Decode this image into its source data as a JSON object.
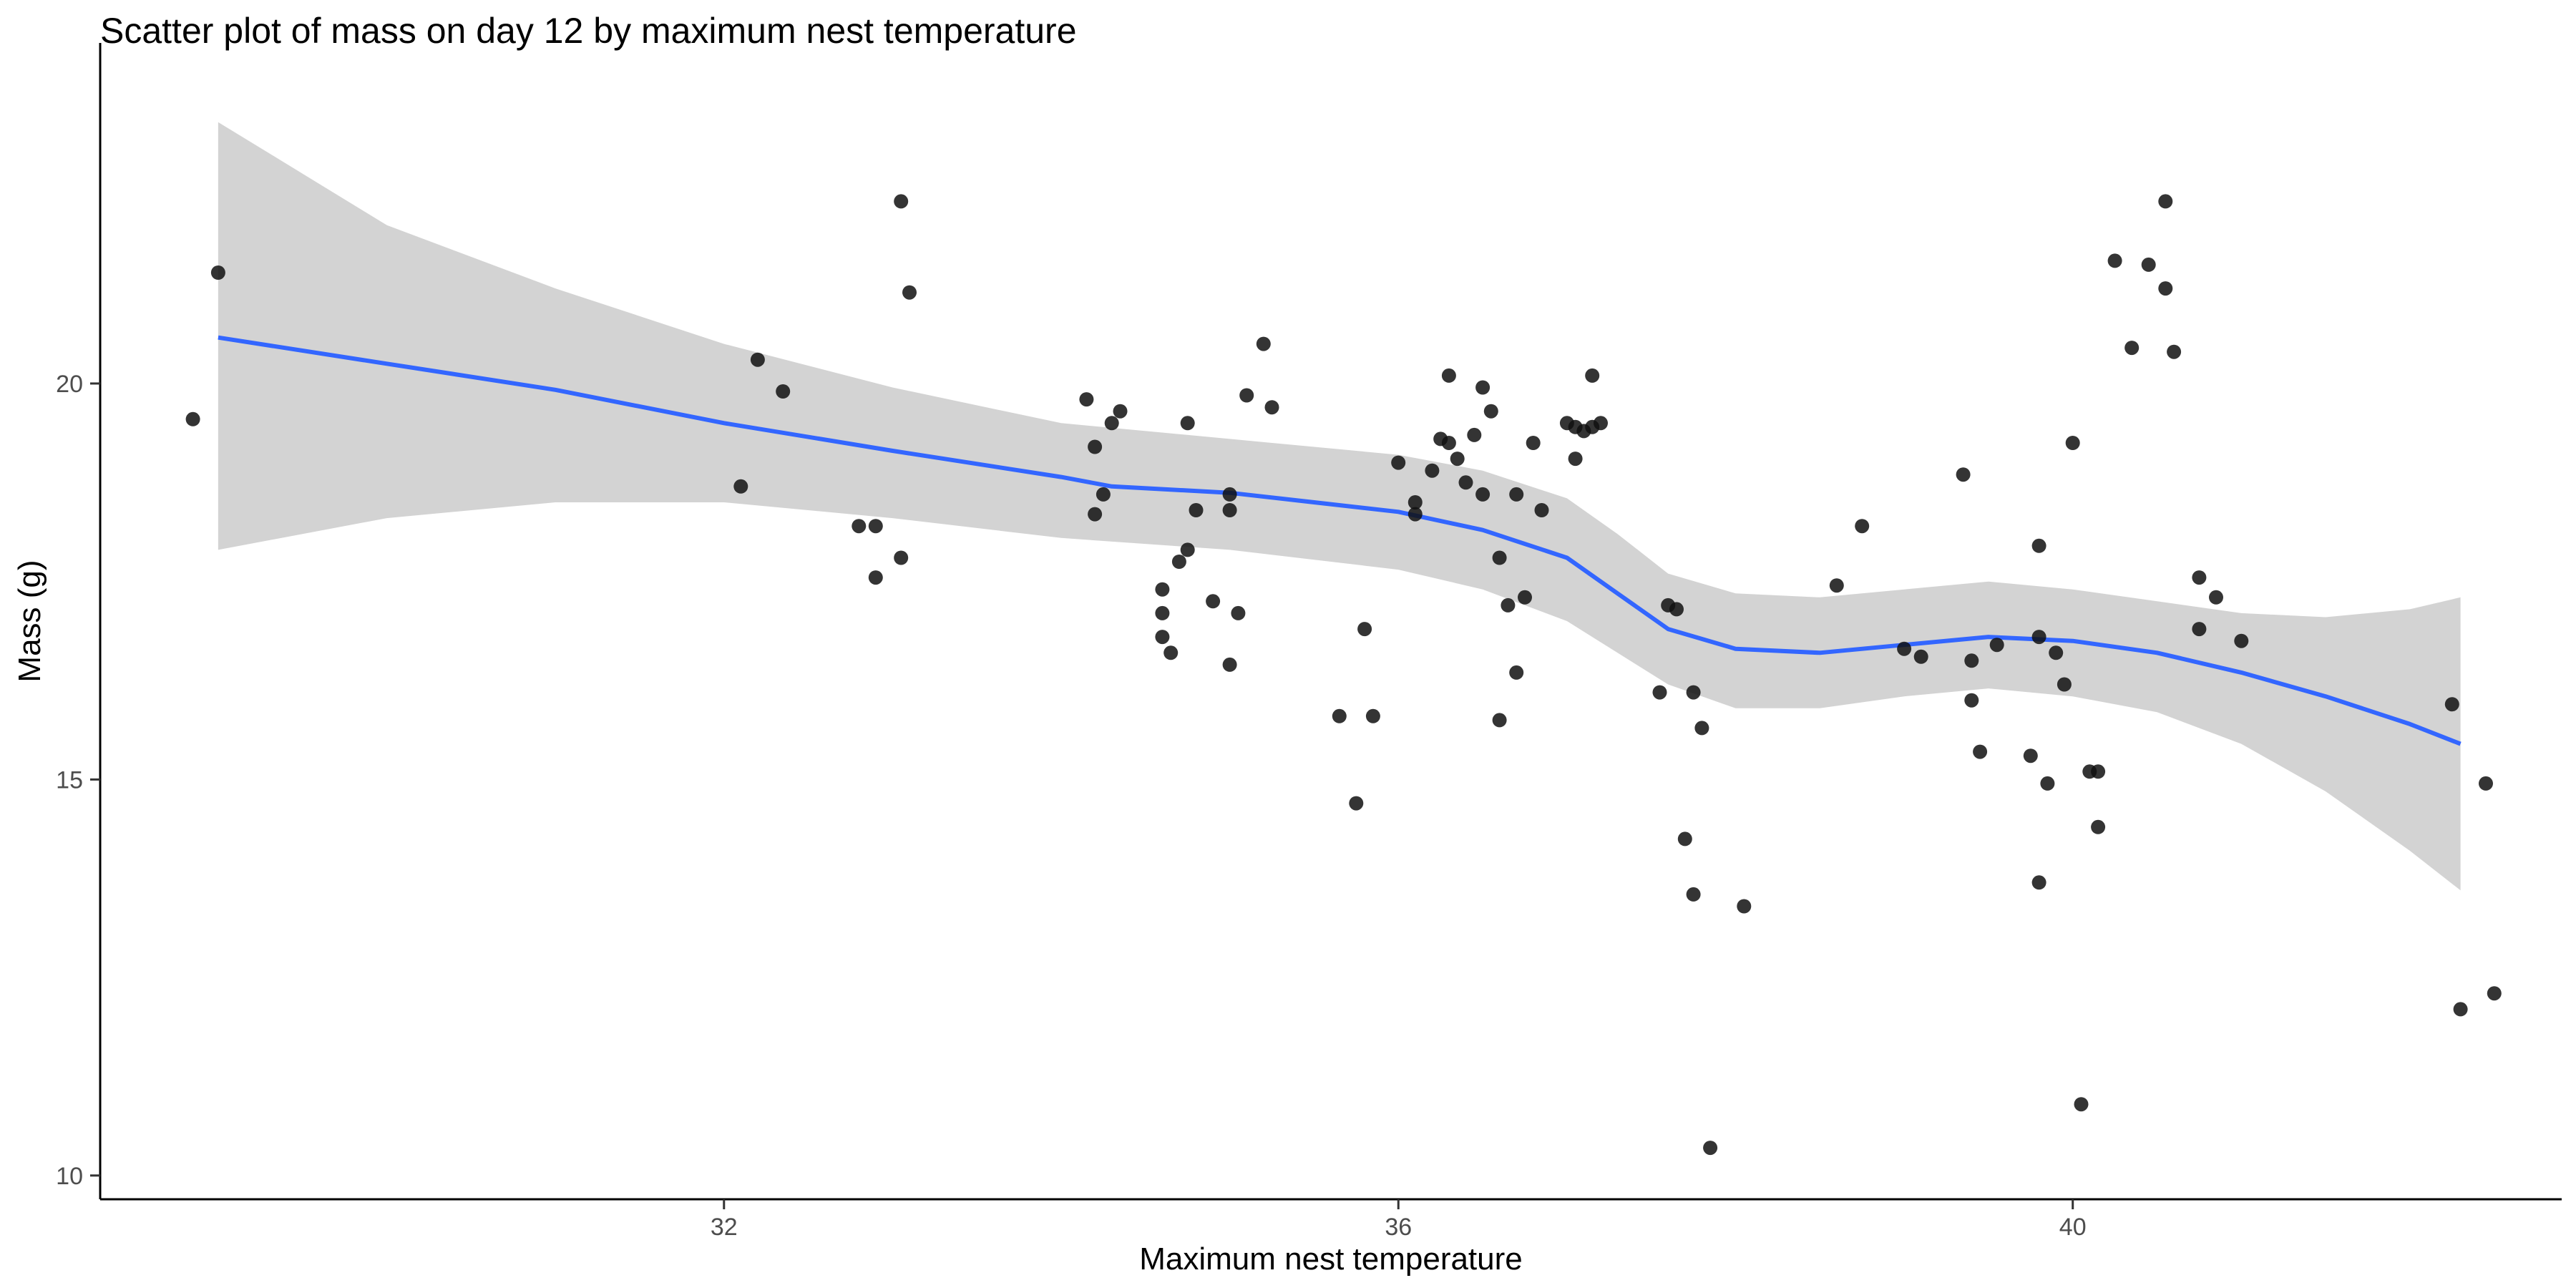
{
  "chart_data": {
    "type": "scatter",
    "title": "Scatter plot of mass on day 12 by maximum nest temperature",
    "xlabel": "Maximum nest temperature",
    "ylabel": "Mass (g)",
    "xlim": [
      28.3,
      42.9
    ],
    "ylim": [
      9.7,
      24.3
    ],
    "x_ticks": [
      32,
      36,
      40
    ],
    "x_tick_labels": [
      "32",
      "36",
      "40"
    ],
    "y_ticks": [
      10,
      15,
      20
    ],
    "y_tick_labels": [
      "10",
      "15",
      "20"
    ],
    "grid": false,
    "legend": "none",
    "colors": {
      "points": "#111111",
      "smooth_line": "#3366ff",
      "confidence_band": "#d3d3d3",
      "axis": "#000000"
    },
    "points": [
      {
        "x": 28.85,
        "y": 19.55
      },
      {
        "x": 29.0,
        "y": 21.4
      },
      {
        "x": 32.1,
        "y": 18.7
      },
      {
        "x": 32.2,
        "y": 20.3
      },
      {
        "x": 32.35,
        "y": 19.9
      },
      {
        "x": 32.8,
        "y": 18.2
      },
      {
        "x": 32.9,
        "y": 17.55
      },
      {
        "x": 32.9,
        "y": 18.2
      },
      {
        "x": 33.05,
        "y": 22.3
      },
      {
        "x": 33.05,
        "y": 17.8
      },
      {
        "x": 33.1,
        "y": 21.15
      },
      {
        "x": 34.15,
        "y": 19.8
      },
      {
        "x": 34.2,
        "y": 19.2
      },
      {
        "x": 34.2,
        "y": 18.35
      },
      {
        "x": 34.25,
        "y": 18.6
      },
      {
        "x": 34.3,
        "y": 19.5
      },
      {
        "x": 34.35,
        "y": 19.65
      },
      {
        "x": 34.6,
        "y": 17.4
      },
      {
        "x": 34.6,
        "y": 17.1
      },
      {
        "x": 34.6,
        "y": 16.8
      },
      {
        "x": 34.65,
        "y": 16.6
      },
      {
        "x": 34.7,
        "y": 17.75
      },
      {
        "x": 34.75,
        "y": 17.9
      },
      {
        "x": 34.75,
        "y": 19.5
      },
      {
        "x": 34.8,
        "y": 18.4
      },
      {
        "x": 34.9,
        "y": 17.25
      },
      {
        "x": 35.0,
        "y": 18.6
      },
      {
        "x": 35.0,
        "y": 18.4
      },
      {
        "x": 35.0,
        "y": 16.45
      },
      {
        "x": 35.05,
        "y": 17.1
      },
      {
        "x": 35.1,
        "y": 19.85
      },
      {
        "x": 35.2,
        "y": 20.5
      },
      {
        "x": 35.25,
        "y": 19.7
      },
      {
        "x": 35.65,
        "y": 15.8
      },
      {
        "x": 35.75,
        "y": 14.7
      },
      {
        "x": 35.8,
        "y": 16.9
      },
      {
        "x": 35.85,
        "y": 15.8
      },
      {
        "x": 36.0,
        "y": 19.0
      },
      {
        "x": 36.1,
        "y": 18.5
      },
      {
        "x": 36.1,
        "y": 18.35
      },
      {
        "x": 36.2,
        "y": 18.9
      },
      {
        "x": 36.25,
        "y": 19.3
      },
      {
        "x": 36.3,
        "y": 20.1
      },
      {
        "x": 36.3,
        "y": 19.25
      },
      {
        "x": 36.35,
        "y": 19.05
      },
      {
        "x": 36.4,
        "y": 18.75
      },
      {
        "x": 36.45,
        "y": 19.35
      },
      {
        "x": 36.5,
        "y": 19.95
      },
      {
        "x": 36.5,
        "y": 18.6
      },
      {
        "x": 36.55,
        "y": 19.65
      },
      {
        "x": 36.6,
        "y": 17.8
      },
      {
        "x": 36.6,
        "y": 15.75
      },
      {
        "x": 36.65,
        "y": 17.2
      },
      {
        "x": 36.7,
        "y": 16.35
      },
      {
        "x": 36.7,
        "y": 18.6
      },
      {
        "x": 36.75,
        "y": 17.3
      },
      {
        "x": 36.8,
        "y": 19.25
      },
      {
        "x": 36.85,
        "y": 18.4
      },
      {
        "x": 37.0,
        "y": 19.5
      },
      {
        "x": 37.05,
        "y": 19.05
      },
      {
        "x": 37.05,
        "y": 19.45
      },
      {
        "x": 37.1,
        "y": 19.4
      },
      {
        "x": 37.15,
        "y": 19.45
      },
      {
        "x": 37.15,
        "y": 20.1
      },
      {
        "x": 37.2,
        "y": 19.5
      },
      {
        "x": 37.55,
        "y": 16.1
      },
      {
        "x": 37.6,
        "y": 17.2
      },
      {
        "x": 37.65,
        "y": 17.15
      },
      {
        "x": 37.7,
        "y": 14.25
      },
      {
        "x": 37.75,
        "y": 13.55
      },
      {
        "x": 37.75,
        "y": 16.1
      },
      {
        "x": 37.8,
        "y": 15.65
      },
      {
        "x": 37.85,
        "y": 10.35
      },
      {
        "x": 38.05,
        "y": 13.4
      },
      {
        "x": 38.6,
        "y": 17.45
      },
      {
        "x": 38.75,
        "y": 18.2
      },
      {
        "x": 39.0,
        "y": 16.65
      },
      {
        "x": 39.1,
        "y": 16.55
      },
      {
        "x": 39.35,
        "y": 18.85
      },
      {
        "x": 39.4,
        "y": 16.5
      },
      {
        "x": 39.4,
        "y": 16.0
      },
      {
        "x": 39.45,
        "y": 15.35
      },
      {
        "x": 39.55,
        "y": 16.7
      },
      {
        "x": 39.75,
        "y": 15.3
      },
      {
        "x": 39.8,
        "y": 13.7
      },
      {
        "x": 39.8,
        "y": 17.95
      },
      {
        "x": 39.8,
        "y": 16.8
      },
      {
        "x": 39.85,
        "y": 14.95
      },
      {
        "x": 39.9,
        "y": 16.6
      },
      {
        "x": 39.95,
        "y": 16.2
      },
      {
        "x": 40.0,
        "y": 19.25
      },
      {
        "x": 40.05,
        "y": 10.9
      },
      {
        "x": 40.1,
        "y": 15.1
      },
      {
        "x": 40.15,
        "y": 15.1
      },
      {
        "x": 40.15,
        "y": 14.4
      },
      {
        "x": 40.25,
        "y": 21.55
      },
      {
        "x": 40.35,
        "y": 20.45
      },
      {
        "x": 40.45,
        "y": 21.5
      },
      {
        "x": 40.55,
        "y": 21.2
      },
      {
        "x": 40.55,
        "y": 22.3
      },
      {
        "x": 40.6,
        "y": 20.4
      },
      {
        "x": 40.75,
        "y": 16.9
      },
      {
        "x": 40.75,
        "y": 17.55
      },
      {
        "x": 40.85,
        "y": 17.3
      },
      {
        "x": 41.0,
        "y": 16.75
      },
      {
        "x": 42.25,
        "y": 15.95
      },
      {
        "x": 42.3,
        "y": 12.1
      },
      {
        "x": 42.45,
        "y": 14.95
      },
      {
        "x": 42.5,
        "y": 12.3
      }
    ],
    "smooth_line": [
      {
        "x": 29.0,
        "y": 20.58
      },
      {
        "x": 30.0,
        "y": 20.25
      },
      {
        "x": 31.0,
        "y": 19.92
      },
      {
        "x": 32.0,
        "y": 19.5
      },
      {
        "x": 33.0,
        "y": 19.15
      },
      {
        "x": 34.0,
        "y": 18.82
      },
      {
        "x": 34.3,
        "y": 18.7
      },
      {
        "x": 35.0,
        "y": 18.62
      },
      {
        "x": 35.5,
        "y": 18.5
      },
      {
        "x": 36.0,
        "y": 18.38
      },
      {
        "x": 36.5,
        "y": 18.15
      },
      {
        "x": 37.0,
        "y": 17.8
      },
      {
        "x": 37.3,
        "y": 17.35
      },
      {
        "x": 37.6,
        "y": 16.9
      },
      {
        "x": 38.0,
        "y": 16.65
      },
      {
        "x": 38.5,
        "y": 16.6
      },
      {
        "x": 39.0,
        "y": 16.7
      },
      {
        "x": 39.5,
        "y": 16.8
      },
      {
        "x": 40.0,
        "y": 16.75
      },
      {
        "x": 40.5,
        "y": 16.6
      },
      {
        "x": 41.0,
        "y": 16.35
      },
      {
        "x": 41.5,
        "y": 16.05
      },
      {
        "x": 42.0,
        "y": 15.7
      },
      {
        "x": 42.3,
        "y": 15.45
      }
    ],
    "band_upper": [
      {
        "x": 29.0,
        "y": 23.3
      },
      {
        "x": 30.0,
        "y": 22.0
      },
      {
        "x": 31.0,
        "y": 21.2
      },
      {
        "x": 32.0,
        "y": 20.5
      },
      {
        "x": 33.0,
        "y": 19.95
      },
      {
        "x": 34.0,
        "y": 19.5
      },
      {
        "x": 35.0,
        "y": 19.3
      },
      {
        "x": 36.0,
        "y": 19.1
      },
      {
        "x": 36.5,
        "y": 18.9
      },
      {
        "x": 37.0,
        "y": 18.55
      },
      {
        "x": 37.3,
        "y": 18.1
      },
      {
        "x": 37.6,
        "y": 17.6
      },
      {
        "x": 38.0,
        "y": 17.35
      },
      {
        "x": 38.5,
        "y": 17.3
      },
      {
        "x": 39.0,
        "y": 17.4
      },
      {
        "x": 39.5,
        "y": 17.5
      },
      {
        "x": 40.0,
        "y": 17.4
      },
      {
        "x": 40.5,
        "y": 17.25
      },
      {
        "x": 41.0,
        "y": 17.1
      },
      {
        "x": 41.5,
        "y": 17.05
      },
      {
        "x": 42.0,
        "y": 17.15
      },
      {
        "x": 42.3,
        "y": 17.3
      }
    ],
    "band_lower": [
      {
        "x": 29.0,
        "y": 17.9
      },
      {
        "x": 30.0,
        "y": 18.3
      },
      {
        "x": 31.0,
        "y": 18.5
      },
      {
        "x": 32.0,
        "y": 18.5
      },
      {
        "x": 33.0,
        "y": 18.3
      },
      {
        "x": 34.0,
        "y": 18.05
      },
      {
        "x": 35.0,
        "y": 17.9
      },
      {
        "x": 36.0,
        "y": 17.65
      },
      {
        "x": 36.5,
        "y": 17.4
      },
      {
        "x": 37.0,
        "y": 17.0
      },
      {
        "x": 37.3,
        "y": 16.6
      },
      {
        "x": 37.6,
        "y": 16.2
      },
      {
        "x": 38.0,
        "y": 15.9
      },
      {
        "x": 38.5,
        "y": 15.9
      },
      {
        "x": 39.0,
        "y": 16.05
      },
      {
        "x": 39.5,
        "y": 16.15
      },
      {
        "x": 40.0,
        "y": 16.05
      },
      {
        "x": 40.5,
        "y": 15.85
      },
      {
        "x": 41.0,
        "y": 15.45
      },
      {
        "x": 41.5,
        "y": 14.85
      },
      {
        "x": 42.0,
        "y": 14.1
      },
      {
        "x": 42.3,
        "y": 13.6
      }
    ]
  }
}
